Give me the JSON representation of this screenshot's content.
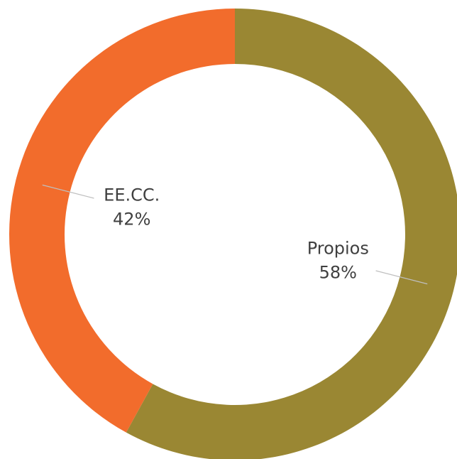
{
  "chart_data": {
    "type": "donut",
    "categories": [
      "Propios",
      "EE.CC."
    ],
    "values": [
      58,
      42
    ],
    "value_labels": [
      "58%",
      "42%"
    ],
    "colors": [
      "#9a8733",
      "#f26c2c"
    ]
  }
}
